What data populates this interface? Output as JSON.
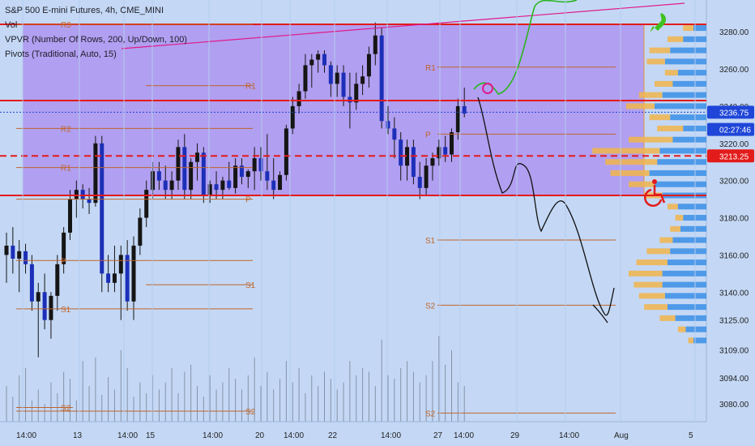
{
  "legend": {
    "title": "S&P 500 E-mini Futures, 4h, CME_MINI",
    "vol": "Vol",
    "vpvr": "VPVR (Number Of Rows, 200, Up/Down, 100)",
    "pivots": "Pivots (Traditional, Auto, 15)"
  },
  "price_tags": [
    {
      "label": "3236.75",
      "price": 3236.75,
      "color": "#1f46d8"
    },
    {
      "label": "02:27:46",
      "price": 3227.5,
      "color": "#1f46d8"
    },
    {
      "label": "3213.25",
      "price": 3213.25,
      "color": "#e31b1b"
    }
  ],
  "chart_data": {
    "type": "candlestick",
    "y_ticks": [
      3280,
      3260,
      3240,
      3220,
      3200,
      3180,
      3160,
      3140,
      3125,
      3109,
      3094,
      3080
    ],
    "y_tick_labels": [
      "3280.00",
      "3260.00",
      "3240.00",
      "3220.00",
      "3200.00",
      "3180.00",
      "3160.00",
      "3140.00",
      "3125.00",
      "3109.00",
      "3094.00",
      "3080.00"
    ],
    "x_ticks": [
      "14:00",
      "13",
      "14:00",
      "15",
      "14:00",
      "20",
      "14:00",
      "22",
      "14:00",
      "27",
      "14:00",
      "29",
      "14:00",
      "Aug",
      "5"
    ],
    "pivot_levels": [
      {
        "label": "R3",
        "price": 3284
      },
      {
        "label": "R2",
        "price": 3228
      },
      {
        "label": "R1",
        "price": 3207
      },
      {
        "label": "R1",
        "price": 3251
      },
      {
        "label": "P",
        "price": 3190
      },
      {
        "label": "P",
        "price": 3157
      },
      {
        "label": "S1",
        "price": 3144
      },
      {
        "label": "S1",
        "price": 3131
      },
      {
        "label": "R1",
        "price": 3261
      },
      {
        "label": "P",
        "price": 3225
      },
      {
        "label": "S1",
        "price": 3168
      },
      {
        "label": "S2",
        "price": 3133
      },
      {
        "label": "S2",
        "price": 3078
      },
      {
        "label": "S2",
        "price": 3076
      },
      {
        "label": "S2",
        "price": 3075
      }
    ],
    "horizontal_lines": [
      {
        "price": 3284,
        "color": "#e31b1b",
        "style": "solid"
      },
      {
        "price": 3243,
        "color": "#e31b1b",
        "style": "solid"
      },
      {
        "price": 3213.25,
        "color": "#e31b1b",
        "style": "dashed"
      },
      {
        "price": 3192,
        "color": "#e31b1b",
        "style": "solid"
      },
      {
        "price": 3236.75,
        "color": "#1f46d8",
        "style": "dotted"
      }
    ],
    "candles": [
      {
        "o": 3160,
        "h": 3172,
        "l": 3145,
        "c": 3165
      },
      {
        "o": 3165,
        "h": 3175,
        "l": 3150,
        "c": 3158
      },
      {
        "o": 3158,
        "h": 3168,
        "l": 3140,
        "c": 3162
      },
      {
        "o": 3162,
        "h": 3166,
        "l": 3150,
        "c": 3155
      },
      {
        "o": 3155,
        "h": 3160,
        "l": 3130,
        "c": 3135
      },
      {
        "o": 3135,
        "h": 3145,
        "l": 3105,
        "c": 3140
      },
      {
        "o": 3140,
        "h": 3150,
        "l": 3120,
        "c": 3125
      },
      {
        "o": 3125,
        "h": 3140,
        "l": 3115,
        "c": 3138
      },
      {
        "o": 3138,
        "h": 3160,
        "l": 3130,
        "c": 3155
      },
      {
        "o": 3155,
        "h": 3175,
        "l": 3150,
        "c": 3172
      },
      {
        "o": 3172,
        "h": 3195,
        "l": 3168,
        "c": 3190
      },
      {
        "o": 3190,
        "h": 3200,
        "l": 3180,
        "c": 3195
      },
      {
        "o": 3195,
        "h": 3198,
        "l": 3185,
        "c": 3190
      },
      {
        "o": 3190,
        "h": 3196,
        "l": 3182,
        "c": 3188
      },
      {
        "o": 3188,
        "h": 3224,
        "l": 3186,
        "c": 3220
      },
      {
        "o": 3220,
        "h": 3224,
        "l": 3140,
        "c": 3150
      },
      {
        "o": 3150,
        "h": 3160,
        "l": 3140,
        "c": 3145
      },
      {
        "o": 3145,
        "h": 3165,
        "l": 3140,
        "c": 3150
      },
      {
        "o": 3150,
        "h": 3165,
        "l": 3125,
        "c": 3160
      },
      {
        "o": 3160,
        "h": 3168,
        "l": 3130,
        "c": 3135
      },
      {
        "o": 3135,
        "h": 3170,
        "l": 3125,
        "c": 3165
      },
      {
        "o": 3165,
        "h": 3185,
        "l": 3160,
        "c": 3180
      },
      {
        "o": 3180,
        "h": 3200,
        "l": 3175,
        "c": 3195
      },
      {
        "o": 3195,
        "h": 3210,
        "l": 3190,
        "c": 3205
      },
      {
        "o": 3205,
        "h": 3210,
        "l": 3195,
        "c": 3200
      },
      {
        "o": 3200,
        "h": 3208,
        "l": 3190,
        "c": 3195
      },
      {
        "o": 3195,
        "h": 3205,
        "l": 3190,
        "c": 3200
      },
      {
        "o": 3200,
        "h": 3222,
        "l": 3195,
        "c": 3218
      },
      {
        "o": 3218,
        "h": 3225,
        "l": 3190,
        "c": 3195
      },
      {
        "o": 3195,
        "h": 3212,
        "l": 3190,
        "c": 3210
      },
      {
        "o": 3210,
        "h": 3220,
        "l": 3200,
        "c": 3215
      },
      {
        "o": 3215,
        "h": 3218,
        "l": 3188,
        "c": 3192
      },
      {
        "o": 3192,
        "h": 3200,
        "l": 3188,
        "c": 3198
      },
      {
        "o": 3198,
        "h": 3205,
        "l": 3190,
        "c": 3195
      },
      {
        "o": 3195,
        "h": 3202,
        "l": 3190,
        "c": 3200
      },
      {
        "o": 3200,
        "h": 3210,
        "l": 3195,
        "c": 3196
      },
      {
        "o": 3196,
        "h": 3212,
        "l": 3193,
        "c": 3208
      },
      {
        "o": 3208,
        "h": 3212,
        "l": 3198,
        "c": 3202
      },
      {
        "o": 3202,
        "h": 3206,
        "l": 3196,
        "c": 3205
      },
      {
        "o": 3205,
        "h": 3218,
        "l": 3195,
        "c": 3212
      },
      {
        "o": 3212,
        "h": 3218,
        "l": 3200,
        "c": 3205
      },
      {
        "o": 3205,
        "h": 3225,
        "l": 3195,
        "c": 3200
      },
      {
        "o": 3200,
        "h": 3212,
        "l": 3190,
        "c": 3195
      },
      {
        "o": 3195,
        "h": 3205,
        "l": 3195,
        "c": 3203
      },
      {
        "o": 3203,
        "h": 3230,
        "l": 3200,
        "c": 3228
      },
      {
        "o": 3228,
        "h": 3245,
        "l": 3225,
        "c": 3240
      },
      {
        "o": 3240,
        "h": 3252,
        "l": 3236,
        "c": 3248
      },
      {
        "o": 3248,
        "h": 3268,
        "l": 3244,
        "c": 3262
      },
      {
        "o": 3262,
        "h": 3268,
        "l": 3250,
        "c": 3265
      },
      {
        "o": 3265,
        "h": 3270,
        "l": 3258,
        "c": 3268
      },
      {
        "o": 3268,
        "h": 3270,
        "l": 3258,
        "c": 3262
      },
      {
        "o": 3262,
        "h": 3264,
        "l": 3245,
        "c": 3252
      },
      {
        "o": 3252,
        "h": 3262,
        "l": 3245,
        "c": 3258
      },
      {
        "o": 3258,
        "h": 3262,
        "l": 3240,
        "c": 3245
      },
      {
        "o": 3245,
        "h": 3258,
        "l": 3228,
        "c": 3242
      },
      {
        "o": 3242,
        "h": 3258,
        "l": 3238,
        "c": 3252
      },
      {
        "o": 3252,
        "h": 3262,
        "l": 3246,
        "c": 3256
      },
      {
        "o": 3256,
        "h": 3272,
        "l": 3250,
        "c": 3268
      },
      {
        "o": 3268,
        "h": 3285,
        "l": 3262,
        "c": 3278
      },
      {
        "o": 3278,
        "h": 3282,
        "l": 3228,
        "c": 3232
      },
      {
        "o": 3232,
        "h": 3240,
        "l": 3225,
        "c": 3228
      },
      {
        "o": 3228,
        "h": 3234,
        "l": 3212,
        "c": 3222
      },
      {
        "o": 3222,
        "h": 3226,
        "l": 3200,
        "c": 3208
      },
      {
        "o": 3208,
        "h": 3222,
        "l": 3200,
        "c": 3218
      },
      {
        "o": 3218,
        "h": 3222,
        "l": 3198,
        "c": 3202
      },
      {
        "o": 3202,
        "h": 3210,
        "l": 3190,
        "c": 3196
      },
      {
        "o": 3196,
        "h": 3212,
        "l": 3192,
        "c": 3208
      },
      {
        "o": 3208,
        "h": 3215,
        "l": 3200,
        "c": 3212
      },
      {
        "o": 3212,
        "h": 3222,
        "l": 3208,
        "c": 3218
      },
      {
        "o": 3218,
        "h": 3224,
        "l": 3210,
        "c": 3214
      },
      {
        "o": 3214,
        "h": 3228,
        "l": 3210,
        "c": 3226
      },
      {
        "o": 3226,
        "h": 3244,
        "l": 3222,
        "c": 3240
      },
      {
        "o": 3240,
        "h": 3250,
        "l": 3234,
        "c": 3236
      }
    ],
    "volumes": [
      20,
      14,
      26,
      30,
      12,
      18,
      10,
      22,
      16,
      28,
      24,
      12,
      34,
      20,
      36,
      15,
      25,
      18,
      40,
      30,
      14,
      22,
      16,
      26,
      18,
      22,
      30,
      16,
      28,
      32,
      20,
      14,
      26,
      18,
      22,
      30,
      24,
      18,
      26,
      36,
      20,
      28,
      18,
      24,
      34,
      22,
      30,
      16,
      26,
      20,
      28,
      24,
      18,
      22,
      34,
      26,
      30,
      28,
      20,
      46,
      26,
      24,
      30,
      34,
      28,
      22,
      26,
      34,
      48,
      32,
      40,
      22,
      20
    ],
    "volume_profile": {
      "bars": [
        {
          "price": 3282,
          "up": 8,
          "down": 10
        },
        {
          "price": 3276,
          "up": 12,
          "down": 18
        },
        {
          "price": 3270,
          "up": 16,
          "down": 28
        },
        {
          "price": 3264,
          "up": 14,
          "down": 32
        },
        {
          "price": 3258,
          "up": 10,
          "down": 22
        },
        {
          "price": 3252,
          "up": 14,
          "down": 26
        },
        {
          "price": 3246,
          "up": 18,
          "down": 34
        },
        {
          "price": 3240,
          "up": 22,
          "down": 40
        },
        {
          "price": 3234,
          "up": 16,
          "down": 28
        },
        {
          "price": 3228,
          "up": 20,
          "down": 18
        },
        {
          "price": 3222,
          "up": 34,
          "down": 26
        },
        {
          "price": 3216,
          "up": 52,
          "down": 36
        },
        {
          "price": 3210,
          "up": 40,
          "down": 38
        },
        {
          "price": 3204,
          "up": 30,
          "down": 44
        },
        {
          "price": 3198,
          "up": 20,
          "down": 40
        },
        {
          "price": 3192,
          "up": 14,
          "down": 34
        },
        {
          "price": 3186,
          "up": 8,
          "down": 22
        },
        {
          "price": 3180,
          "up": 6,
          "down": 18
        },
        {
          "price": 3174,
          "up": 8,
          "down": 20
        },
        {
          "price": 3168,
          "up": 10,
          "down": 26
        },
        {
          "price": 3162,
          "up": 18,
          "down": 28
        },
        {
          "price": 3156,
          "up": 24,
          "down": 30
        },
        {
          "price": 3150,
          "up": 26,
          "down": 34
        },
        {
          "price": 3144,
          "up": 22,
          "down": 34
        },
        {
          "price": 3138,
          "up": 20,
          "down": 32
        },
        {
          "price": 3132,
          "up": 18,
          "down": 30
        },
        {
          "price": 3126,
          "up": 12,
          "down": 24
        },
        {
          "price": 3120,
          "up": 6,
          "down": 16
        },
        {
          "price": 3114,
          "up": 4,
          "down": 10
        }
      ]
    }
  }
}
